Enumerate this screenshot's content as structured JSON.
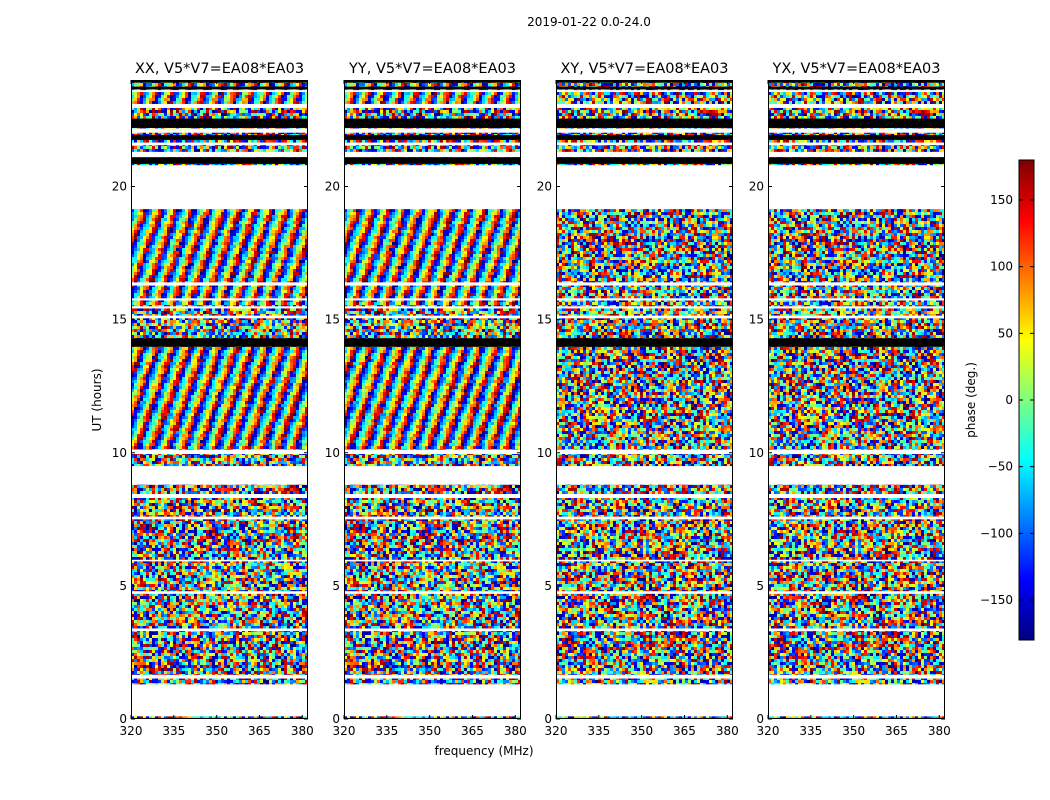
{
  "chart_data": {
    "type": "heatmap",
    "title": "2019-01-22 0.0-24.0",
    "xlabel": "frequency (MHz)",
    "ylabel": "UT (hours)",
    "xlim": [
      320,
      382
    ],
    "ylim": [
      0,
      24
    ],
    "xticks": [
      "320",
      "335",
      "350",
      "365",
      "380"
    ],
    "yticks": [
      "0",
      "5",
      "10",
      "15",
      "20"
    ],
    "panels": [
      {
        "title": "XX, V5*V7=EA08*EA03",
        "coherent": true
      },
      {
        "title": "YY, V5*V7=EA08*EA03",
        "coherent": true
      },
      {
        "title": "XY, V5*V7=EA08*EA03",
        "coherent": false
      },
      {
        "title": "YX, V5*V7=EA08*EA03",
        "coherent": false
      }
    ],
    "colorbar": {
      "label": "phase (deg.)",
      "range": [
        -180,
        180
      ],
      "ticks": [
        "150",
        "100",
        "50",
        "0",
        "−50",
        "−100",
        "−150"
      ],
      "colormap": [
        "#00007f",
        "#0000ff",
        "#007fff",
        "#00ffff",
        "#7fff7f",
        "#ffff00",
        "#ff7f00",
        "#ff0000",
        "#7f0000"
      ]
    },
    "blank_bands_hours": [
      [
        0.1,
        1.3
      ],
      [
        1.52,
        1.66
      ],
      [
        3.3,
        3.4
      ],
      [
        4.7,
        4.8
      ],
      [
        5.92,
        5.98
      ],
      [
        7.5,
        7.6
      ],
      [
        8.3,
        8.45
      ],
      [
        8.8,
        9.5
      ],
      [
        9.95,
        10.12
      ],
      [
        15.05,
        15.15
      ],
      [
        15.42,
        15.5
      ],
      [
        15.72,
        15.8
      ],
      [
        16.28,
        16.4
      ],
      [
        19.15,
        20.8
      ],
      [
        21.1,
        21.3
      ],
      [
        21.55,
        21.65
      ],
      [
        22.02,
        22.18
      ],
      [
        22.95,
        23.1
      ],
      [
        23.55,
        23.62
      ]
    ],
    "black_bands_hours": [
      [
        13.98,
        14.3
      ],
      [
        20.85,
        21.1
      ],
      [
        21.75,
        21.93
      ],
      [
        22.2,
        22.55
      ],
      [
        23.65,
        23.75
      ],
      [
        23.9,
        24.0
      ]
    ]
  }
}
